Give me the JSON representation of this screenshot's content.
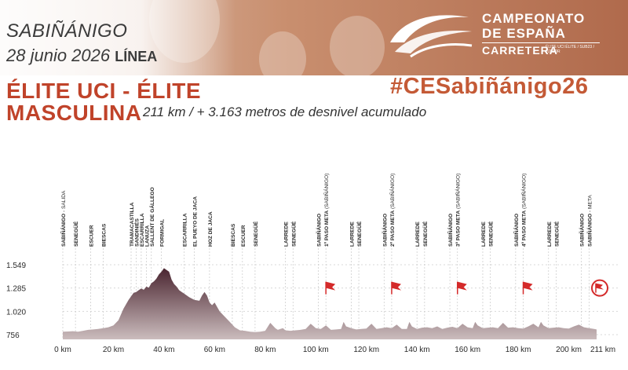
{
  "header": {
    "city": "SABIÑÁNIGO",
    "date": "28 junio 2026",
    "start_type": "LÍNEA",
    "logo_line1": "CAMPEONATO",
    "logo_line2": "DE ESPAÑA",
    "logo_line3": "CARRETERA",
    "logo_sub": "ÉLITE UCI ÉLITE / SUB23 / JÚNIOR",
    "hashtag": "#CESabiñánigo26"
  },
  "race": {
    "title_line1": "ÉLITE UCI - ÉLITE",
    "title_line2": "MASCULINA",
    "subtitle": "211 km / + 3.163 metros de desnivel acumulado"
  },
  "colors": {
    "accent": "#c0432a",
    "profile_top": "#4a2530",
    "profile_bottom": "#c8b6b8",
    "flag": "#d42a2a"
  },
  "chart_data": {
    "type": "area",
    "title": "",
    "xlabel": "",
    "ylabel": "",
    "x_unit": "km",
    "xlim": [
      0,
      211
    ],
    "ylim": [
      700,
      1600
    ],
    "y_ticks": [
      756,
      1020,
      1285,
      1549
    ],
    "y_tick_labels": [
      "756",
      "1.020",
      "1.285",
      "1.549"
    ],
    "x_ticks": [
      0,
      20,
      40,
      60,
      80,
      100,
      120,
      140,
      160,
      180,
      200,
      211
    ],
    "x_tick_labels": [
      "0 km",
      "20 km",
      "40 km",
      "60 km",
      "80 km",
      "100 km",
      "120 km",
      "140 km",
      "160 km",
      "180 km",
      "200 km",
      "211 km"
    ],
    "elevation_profile": {
      "x": [
        0,
        2,
        4,
        6,
        8,
        10,
        12,
        14,
        16,
        18,
        20,
        22,
        24,
        26,
        28,
        29,
        30,
        31,
        32,
        33,
        34,
        35,
        36,
        37,
        38,
        39,
        40,
        41,
        42,
        43,
        44,
        45,
        46,
        47,
        48,
        50,
        52,
        54,
        55,
        56,
        57,
        58,
        59,
        60,
        62,
        64,
        66,
        68,
        70,
        72,
        74,
        76,
        78,
        80,
        82,
        84,
        85,
        86,
        87,
        88,
        90,
        92,
        94,
        96,
        98,
        100,
        102,
        104,
        106,
        108,
        110,
        111,
        112,
        114,
        116,
        118,
        120,
        122,
        124,
        126,
        128,
        130,
        132,
        134,
        136,
        137,
        138,
        140,
        142,
        144,
        146,
        148,
        150,
        152,
        154,
        156,
        158,
        160,
        162,
        163,
        164,
        166,
        168,
        170,
        172,
        174,
        176,
        178,
        180,
        182,
        184,
        186,
        188,
        189,
        190,
        192,
        194,
        196,
        198,
        200,
        202,
        204,
        206,
        208,
        210,
        211
      ],
      "y": [
        790,
        792,
        795,
        790,
        800,
        810,
        815,
        820,
        830,
        840,
        860,
        920,
        1050,
        1150,
        1230,
        1240,
        1260,
        1280,
        1265,
        1300,
        1290,
        1340,
        1360,
        1390,
        1440,
        1470,
        1510,
        1490,
        1470,
        1380,
        1330,
        1300,
        1260,
        1240,
        1220,
        1180,
        1150,
        1140,
        1200,
        1240,
        1200,
        1120,
        1090,
        1120,
        1020,
        960,
        900,
        840,
        805,
        800,
        790,
        785,
        790,
        800,
        890,
        830,
        810,
        820,
        830,
        805,
        800,
        805,
        810,
        820,
        880,
        830,
        820,
        860,
        810,
        815,
        820,
        900,
        850,
        830,
        815,
        820,
        825,
        880,
        820,
        830,
        840,
        830,
        870,
        820,
        820,
        900,
        850,
        820,
        835,
        840,
        830,
        850,
        820,
        835,
        845,
        830,
        880,
        840,
        830,
        900,
        860,
        830,
        835,
        840,
        830,
        890,
        835,
        840,
        830,
        825,
        850,
        880,
        840,
        900,
        860,
        830,
        835,
        840,
        830,
        825,
        850,
        870,
        840,
        830,
        820,
        815
      ]
    },
    "locations": [
      {
        "km": 0,
        "name": "SABIÑÁNIGO",
        "suffix": " - SALIDA"
      },
      {
        "km": 5,
        "name": "SENEGÜÉ"
      },
      {
        "km": 11,
        "name": "ESCUER"
      },
      {
        "km": 16,
        "name": "BIESCAS"
      },
      {
        "km": 27,
        "name": "TRAMACASTILLA"
      },
      {
        "km": 29,
        "name": "SANDINIÉS"
      },
      {
        "km": 31,
        "name": "ESCARRILLA"
      },
      {
        "km": 33,
        "name": "LANUZA"
      },
      {
        "km": 35,
        "name": "SALLENT DE GÁLLEGO"
      },
      {
        "km": 39,
        "name": "FORMIGAL"
      },
      {
        "km": 48,
        "name": "ESCARRILLA"
      },
      {
        "km": 52,
        "name": "EL PUEYO DE JACA"
      },
      {
        "km": 58,
        "name": "HOZ DE JACA"
      },
      {
        "km": 67,
        "name": "BIESCAS"
      },
      {
        "km": 71,
        "name": "ESCUER"
      },
      {
        "km": 76,
        "name": "SENEGÜÉ"
      },
      {
        "km": 88,
        "name": "LARREDE"
      },
      {
        "km": 91,
        "name": "SENEGÜÉ"
      },
      {
        "km": 101,
        "name": "SABIÑÁNIGO"
      },
      {
        "km": 104,
        "name": "1º PASO META",
        "suffix": " (SABIÑÁNIGO)"
      },
      {
        "km": 114,
        "name": "LARREDE"
      },
      {
        "km": 117,
        "name": "SENEGÜÉ"
      },
      {
        "km": 127,
        "name": "SABIÑÁNIGO"
      },
      {
        "km": 130,
        "name": "2º PASO META",
        "suffix": " (SABIÑÁNIGO)"
      },
      {
        "km": 140,
        "name": "LARREDE"
      },
      {
        "km": 143,
        "name": "SENEGÜÉ"
      },
      {
        "km": 153,
        "name": "SABIÑÁNIGO"
      },
      {
        "km": 156,
        "name": "3º PASO META",
        "suffix": " (SABIÑÁNIGO)"
      },
      {
        "km": 166,
        "name": "LARREDE"
      },
      {
        "km": 169,
        "name": "SENEGÜÉ"
      },
      {
        "km": 179,
        "name": "SABIÑÁNIGO"
      },
      {
        "km": 182,
        "name": "4º PASO META",
        "suffix": " (SABIÑÁNIGO)"
      },
      {
        "km": 192,
        "name": "LARREDE"
      },
      {
        "km": 195,
        "name": "SENEGÜÉ"
      },
      {
        "km": 205,
        "name": "SABIÑÁNIGO"
      },
      {
        "km": 208,
        "name": "SABIÑÁNIGO",
        "suffix": " - META"
      }
    ],
    "flags": [
      {
        "km": 104,
        "elevation": 1285,
        "kind": "passage",
        "icon": "flag-icon"
      },
      {
        "km": 130,
        "elevation": 1285,
        "kind": "passage",
        "icon": "flag-icon"
      },
      {
        "km": 156,
        "elevation": 1285,
        "kind": "passage",
        "icon": "flag-icon"
      },
      {
        "km": 182,
        "elevation": 1285,
        "kind": "passage",
        "icon": "flag-icon"
      },
      {
        "km": 211,
        "elevation": 1285,
        "kind": "finish",
        "icon": "finish-flag-icon"
      }
    ]
  }
}
